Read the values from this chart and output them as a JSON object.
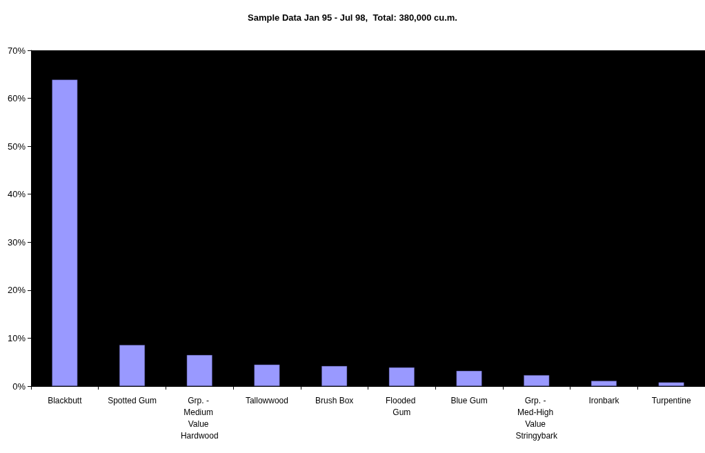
{
  "chart_data": {
    "type": "bar",
    "title": "Sample Data Jan 95 - Jul 98,  Total: 380,000 cu.m.",
    "categories": [
      "Blackbutt",
      "Spotted Gum",
      "Grp. - Medium Value Hardwood",
      "Tallowwood",
      "Brush Box",
      "Flooded Gum",
      "Blue Gum",
      "Grp. - Med-High Value Stringybark",
      "Ironbark",
      "Turpentine"
    ],
    "values": [
      63.9,
      8.6,
      6.5,
      4.5,
      4.2,
      3.9,
      3.2,
      2.3,
      1.1,
      0.8
    ],
    "color": "#9999ff",
    "ylim": [
      0,
      70
    ],
    "yticks": [
      {
        "value": 0,
        "label": "0%"
      },
      {
        "value": 10,
        "label": "10%"
      },
      {
        "value": 20,
        "label": "20%"
      },
      {
        "value": 30,
        "label": "30%"
      },
      {
        "value": 40,
        "label": "40%"
      },
      {
        "value": 50,
        "label": "50%"
      },
      {
        "value": 60,
        "label": "60%"
      },
      {
        "value": 70,
        "label": "70%"
      }
    ],
    "grid": false
  }
}
